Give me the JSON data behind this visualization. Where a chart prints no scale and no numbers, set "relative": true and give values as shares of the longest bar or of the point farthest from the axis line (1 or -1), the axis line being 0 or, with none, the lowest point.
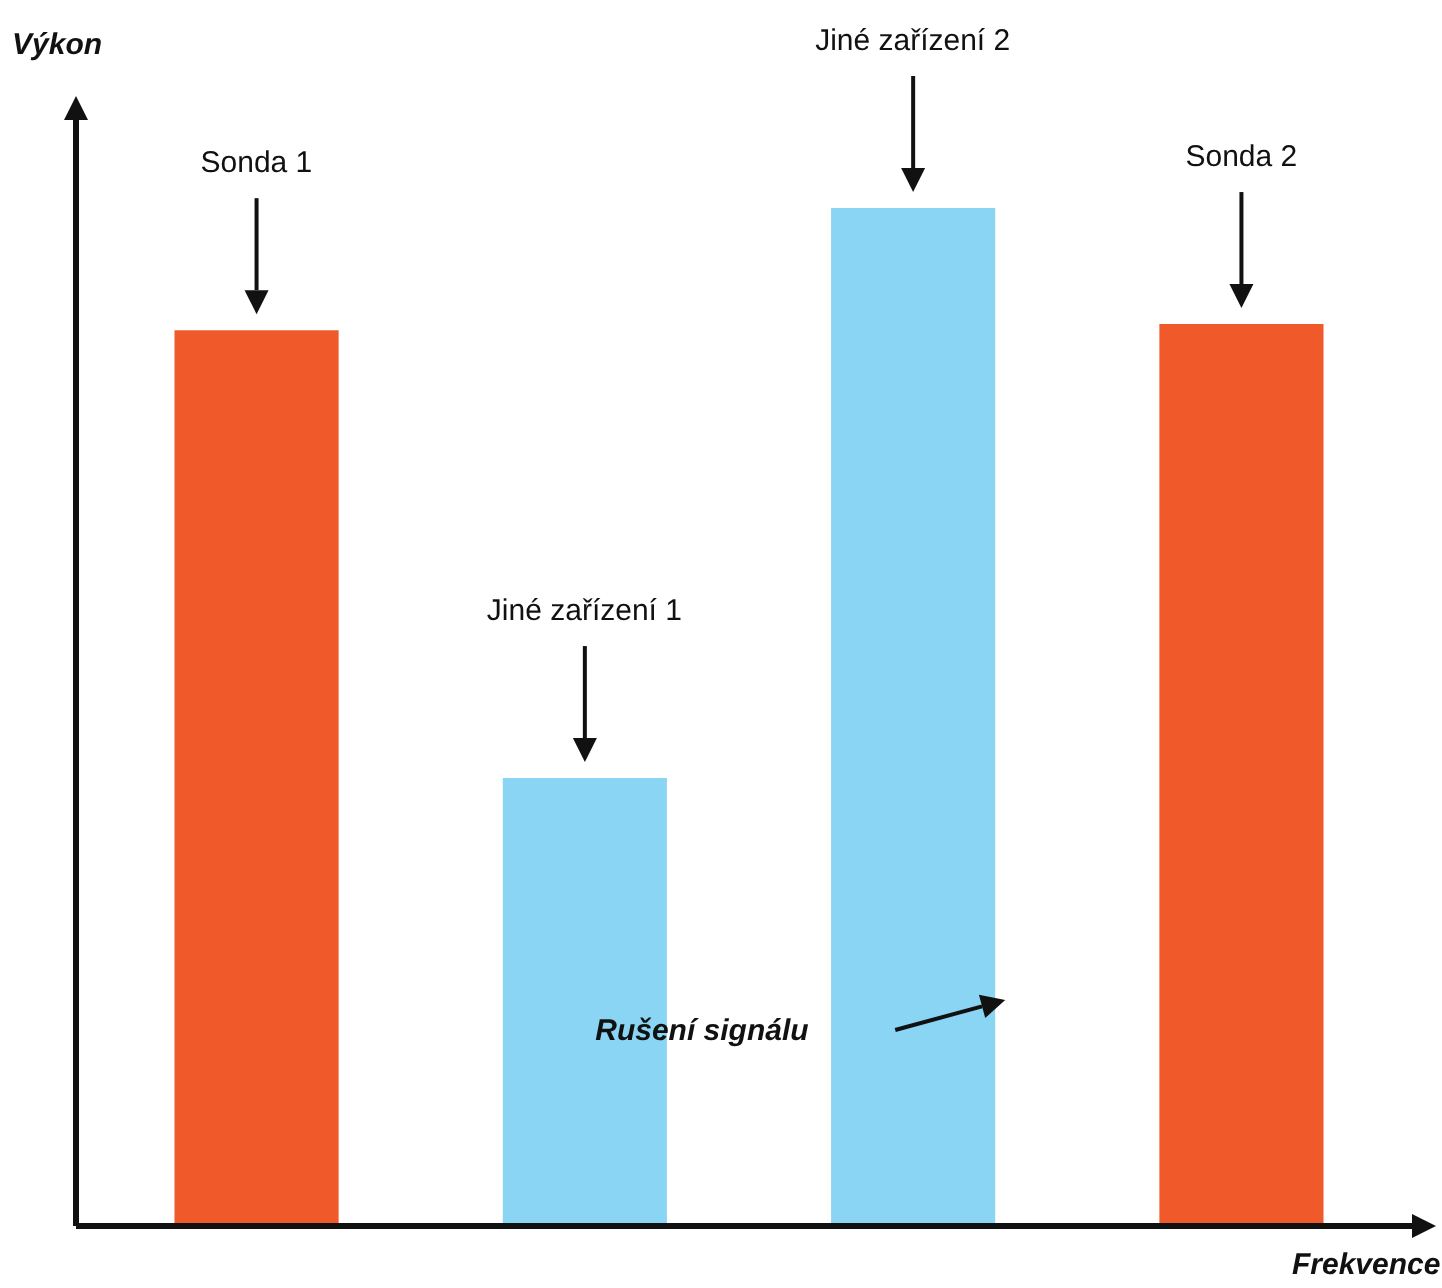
{
  "chart_data": {
    "type": "bar",
    "relative": true,
    "xlabel": "Frekvence",
    "ylabel": "Výkon",
    "categories": [
      null,
      null,
      null,
      null
    ],
    "values": [
      0.88,
      0.44,
      1,
      0.886
    ],
    "colors": [
      "#f05a2a",
      "#8ad4f4",
      "#8ad4f4",
      "#f05a2a"
    ],
    "annotations": [
      "Sonda 1",
      "Jiné zařízení 1",
      "Jiné zařízení 2",
      "Sonda 2",
      "Rušení signálu"
    ]
  }
}
